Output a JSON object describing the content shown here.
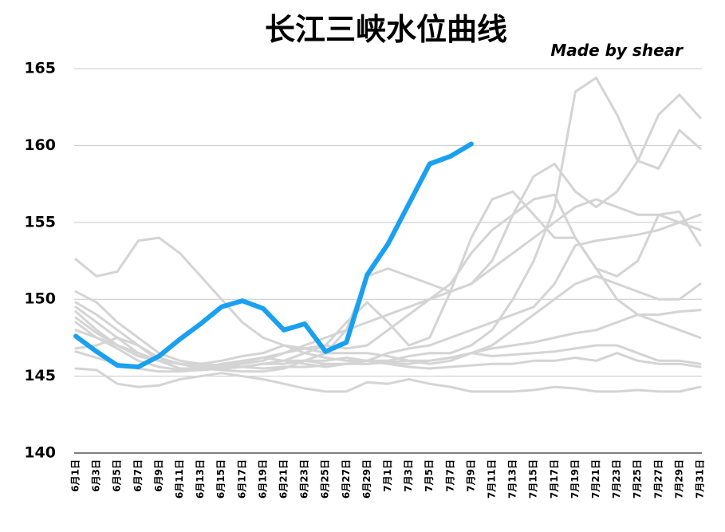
{
  "chart_data": {
    "type": "line",
    "title": "长江三峡水位曲线",
    "annotation": "Made by shear",
    "categories": [
      "6月1日",
      "6月3日",
      "6月5日",
      "6月7日",
      "6月9日",
      "6月11日",
      "6月13日",
      "6月15日",
      "6月17日",
      "6月19日",
      "6月21日",
      "6月23日",
      "6月25日",
      "6月27日",
      "6月29日",
      "7月1日",
      "7月3日",
      "7月5日",
      "7月7日",
      "7月9日",
      "7月11日",
      "7月13日",
      "7月15日",
      "7月17日",
      "7月19日",
      "7月21日",
      "7月23日",
      "7月25日",
      "7月27日",
      "7月29日",
      "7月31日"
    ],
    "ylim": [
      140,
      165
    ],
    "yticks": [
      140,
      145,
      150,
      155,
      160,
      165
    ],
    "grid": true,
    "series": [
      {
        "color": "#d4d4d4",
        "values": [
          152.6,
          151.5,
          151.8,
          153.8,
          154.0,
          153.0,
          151.5,
          150.0,
          148.5,
          147.5,
          147.0,
          146.5,
          146.2,
          146.0,
          146.0,
          146.0,
          146.3,
          146.5,
          146.5,
          147.0,
          148.0,
          150.0,
          152.5,
          156.0,
          163.5,
          164.4,
          162.0,
          159.0,
          158.5,
          161.0,
          159.8
        ]
      },
      {
        "color": "#d4d4d4",
        "values": [
          150.5,
          149.8,
          148.5,
          147.5,
          146.5,
          146.0,
          145.8,
          145.7,
          145.6,
          145.8,
          146.0,
          146.5,
          147.0,
          148.5,
          149.8,
          148.5,
          147.0,
          147.5,
          150.5,
          154.0,
          156.5,
          157.0,
          155.5,
          154.0,
          154.0,
          152.0,
          150.0,
          149.0,
          148.5,
          148.0,
          147.5
        ]
      },
      {
        "color": "#d4d4d4",
        "values": [
          149.8,
          149.0,
          148.0,
          147.0,
          146.2,
          145.8,
          145.5,
          145.4,
          145.3,
          145.3,
          145.5,
          146.0,
          146.5,
          148.0,
          151.5,
          152.0,
          151.5,
          151.0,
          150.5,
          151.0,
          152.5,
          155.5,
          158.0,
          158.8,
          157.0,
          156.0,
          157.0,
          159.0,
          162.0,
          163.3,
          161.8
        ]
      },
      {
        "color": "#d4d4d4",
        "values": [
          145.5,
          145.4,
          144.5,
          144.3,
          144.4,
          144.8,
          145.0,
          145.2,
          145.0,
          144.8,
          144.5,
          144.2,
          144.0,
          144.0,
          144.6,
          144.5,
          144.8,
          144.5,
          144.3,
          144.0,
          144.0,
          144.0,
          144.1,
          144.3,
          144.2,
          144.0,
          144.0,
          144.1,
          144.0,
          144.0,
          144.3
        ]
      },
      {
        "color": "#d4d4d4",
        "values": [
          146.8,
          147.0,
          147.5,
          147.0,
          146.0,
          145.5,
          145.5,
          145.8,
          146.0,
          146.2,
          146.5,
          146.8,
          147.0,
          146.8,
          147.0,
          148.0,
          149.0,
          150.0,
          151.0,
          153.0,
          154.5,
          155.5,
          156.5,
          156.8,
          154.0,
          152.0,
          151.5,
          152.5,
          155.5,
          155.7,
          153.5
        ]
      },
      {
        "color": "#d4d4d4",
        "values": [
          149.5,
          148.5,
          147.5,
          146.5,
          146.0,
          145.8,
          145.7,
          145.6,
          145.8,
          146.0,
          146.5,
          147.0,
          147.5,
          148.0,
          148.5,
          149.0,
          149.5,
          150.0,
          150.5,
          151.0,
          152.0,
          153.0,
          154.0,
          155.0,
          156.0,
          156.5,
          156.0,
          155.5,
          155.5,
          155.0,
          154.5
        ]
      },
      {
        "color": "#d4d4d4",
        "values": [
          148.5,
          147.5,
          146.8,
          146.0,
          145.6,
          145.4,
          145.4,
          145.5,
          145.6,
          145.8,
          145.8,
          146.0,
          146.0,
          146.2,
          146.0,
          145.8,
          145.8,
          146.0,
          146.2,
          146.5,
          146.8,
          147.0,
          147.2,
          147.5,
          147.8,
          148.0,
          148.5,
          149.0,
          149.0,
          149.2,
          149.3
        ]
      },
      {
        "color": "#d4d4d4",
        "values": [
          148.0,
          147.5,
          147.0,
          146.5,
          146.0,
          145.8,
          145.6,
          145.5,
          145.6,
          145.8,
          146.0,
          146.0,
          145.8,
          145.8,
          146.0,
          146.5,
          146.8,
          147.0,
          147.5,
          148.0,
          148.5,
          149.0,
          149.5,
          151.0,
          153.5,
          153.8,
          154.0,
          154.2,
          154.5,
          155.0,
          155.5
        ]
      },
      {
        "color": "#d4d4d4",
        "values": [
          146.6,
          146.2,
          145.8,
          145.5,
          145.3,
          145.3,
          145.4,
          145.5,
          145.6,
          145.5,
          145.6,
          145.6,
          145.7,
          145.8,
          145.8,
          145.9,
          146.0,
          146.0,
          146.2,
          146.5,
          146.3,
          146.4,
          146.5,
          146.6,
          146.8,
          147.0,
          147.0,
          146.5,
          146.0,
          146.0,
          145.8
        ]
      },
      {
        "color": "#d4d4d4",
        "values": [
          149.2,
          148.0,
          147.0,
          146.3,
          146.0,
          145.8,
          145.8,
          146.0,
          146.3,
          146.5,
          147.0,
          146.8,
          146.5,
          146.5,
          146.5,
          146.3,
          146.0,
          145.8,
          146.0,
          146.5,
          147.0,
          148.0,
          149.0,
          150.0,
          151.0,
          151.5,
          151.0,
          150.5,
          150.0,
          150.0,
          151.0
        ]
      },
      {
        "color": "#d4d4d4",
        "values": [
          148.8,
          147.8,
          147.0,
          146.5,
          146.0,
          145.8,
          145.6,
          145.7,
          145.9,
          146.2,
          146.0,
          145.8,
          145.6,
          145.8,
          146.0,
          145.8,
          145.6,
          145.5,
          145.6,
          145.7,
          145.8,
          145.8,
          146.0,
          146.0,
          146.2,
          146.0,
          146.5,
          146.0,
          145.8,
          145.8,
          145.6
        ]
      },
      {
        "color": "#1aa0f0",
        "values": [
          147.6,
          146.6,
          145.7,
          145.6,
          146.3,
          147.4,
          148.4,
          149.5,
          149.9,
          149.4,
          148.0,
          148.4,
          146.6,
          147.2,
          151.6,
          153.6,
          156.2,
          158.8,
          159.3,
          160.1,
          null,
          null,
          null,
          null,
          null,
          null,
          null,
          null,
          null,
          null,
          null
        ]
      }
    ]
  }
}
